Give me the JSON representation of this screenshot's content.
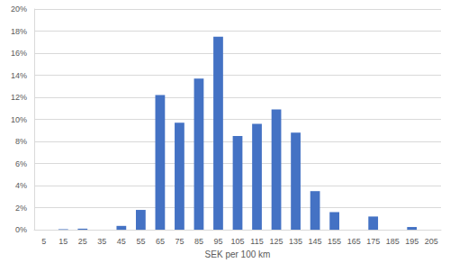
{
  "chart_data": {
    "type": "bar",
    "x_label": "SEK per 100 km",
    "categories": [
      "5",
      "15",
      "25",
      "35",
      "45",
      "55",
      "65",
      "75",
      "85",
      "95",
      "105",
      "115",
      "125",
      "135",
      "145",
      "155",
      "165",
      "175",
      "185",
      "195",
      "205"
    ],
    "values": [
      0,
      0.05,
      0.1,
      0,
      0.35,
      1.8,
      12.2,
      9.7,
      13.7,
      17.5,
      8.5,
      9.6,
      10.9,
      8.8,
      3.5,
      1.6,
      0,
      1.2,
      0,
      0.25,
      0
    ],
    "color": "#4472c4",
    "ylim": [
      0,
      20
    ],
    "yticks": [
      {
        "value": 0,
        "label": "0%"
      },
      {
        "value": 2,
        "label": "2%"
      },
      {
        "value": 4,
        "label": "4%"
      },
      {
        "value": 6,
        "label": "6%"
      },
      {
        "value": 8,
        "label": "8%"
      },
      {
        "value": 10,
        "label": "10%"
      },
      {
        "value": 12,
        "label": "12%"
      },
      {
        "value": 14,
        "label": "14%"
      },
      {
        "value": 16,
        "label": "16%"
      },
      {
        "value": 18,
        "label": "18%"
      },
      {
        "value": 20,
        "label": "20%"
      }
    ],
    "grid": true
  }
}
